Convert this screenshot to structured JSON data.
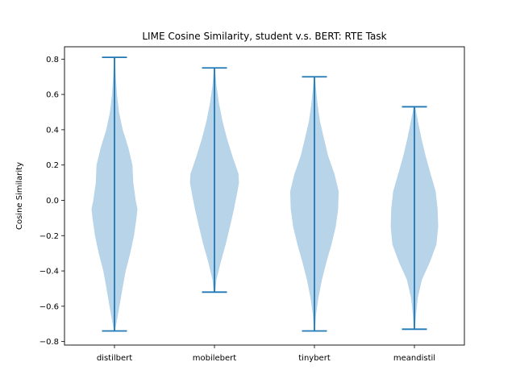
{
  "chart_data": {
    "type": "violin",
    "title": "LIME Cosine Similarity, student v.s. BERT: RTE Task",
    "xlabel": "",
    "ylabel": "Cosine Similarity",
    "ylim": [
      -0.82,
      0.87
    ],
    "yticks": [
      -0.8,
      -0.6,
      -0.4,
      -0.2,
      0.0,
      0.2,
      0.4,
      0.6,
      0.8
    ],
    "ytick_labels": [
      "−0.8",
      "−0.6",
      "−0.4",
      "−0.2",
      "0.0",
      "0.2",
      "0.4",
      "0.6",
      "0.8"
    ],
    "categories": [
      "distilbert",
      "mobilebert",
      "tinybert",
      "meandistil"
    ],
    "fill_color": "#b8d4e9",
    "line_color": "#1f77b4",
    "grid": false,
    "series": [
      {
        "name": "distilbert",
        "min": -0.74,
        "max": 0.81,
        "density": [
          [
            -0.74,
            0.02
          ],
          [
            -0.7,
            0.07
          ],
          [
            -0.6,
            0.2
          ],
          [
            -0.5,
            0.32
          ],
          [
            -0.4,
            0.45
          ],
          [
            -0.3,
            0.63
          ],
          [
            -0.2,
            0.78
          ],
          [
            -0.1,
            0.88
          ],
          [
            -0.05,
            0.92
          ],
          [
            0.0,
            0.85
          ],
          [
            0.1,
            0.75
          ],
          [
            0.2,
            0.72
          ],
          [
            0.3,
            0.55
          ],
          [
            0.4,
            0.33
          ],
          [
            0.5,
            0.18
          ],
          [
            0.6,
            0.1
          ],
          [
            0.7,
            0.05
          ],
          [
            0.81,
            0.02
          ]
        ]
      },
      {
        "name": "mobilebert",
        "min": -0.52,
        "max": 0.75,
        "density": [
          [
            -0.52,
            0.03
          ],
          [
            -0.45,
            0.08
          ],
          [
            -0.35,
            0.25
          ],
          [
            -0.25,
            0.45
          ],
          [
            -0.15,
            0.62
          ],
          [
            -0.05,
            0.78
          ],
          [
            0.05,
            0.92
          ],
          [
            0.1,
            0.98
          ],
          [
            0.15,
            0.96
          ],
          [
            0.25,
            0.72
          ],
          [
            0.35,
            0.5
          ],
          [
            0.45,
            0.32
          ],
          [
            0.55,
            0.18
          ],
          [
            0.65,
            0.08
          ],
          [
            0.75,
            0.02
          ]
        ]
      },
      {
        "name": "tinybert",
        "min": -0.74,
        "max": 0.7,
        "density": [
          [
            -0.74,
            0.02
          ],
          [
            -0.65,
            0.06
          ],
          [
            -0.55,
            0.16
          ],
          [
            -0.45,
            0.3
          ],
          [
            -0.35,
            0.48
          ],
          [
            -0.25,
            0.68
          ],
          [
            -0.15,
            0.85
          ],
          [
            -0.05,
            0.95
          ],
          [
            0.05,
            0.97
          ],
          [
            0.15,
            0.8
          ],
          [
            0.25,
            0.55
          ],
          [
            0.35,
            0.38
          ],
          [
            0.45,
            0.22
          ],
          [
            0.55,
            0.12
          ],
          [
            0.65,
            0.05
          ],
          [
            0.7,
            0.02
          ]
        ]
      },
      {
        "name": "meandistil",
        "min": -0.73,
        "max": 0.53,
        "density": [
          [
            -0.73,
            0.02
          ],
          [
            -0.65,
            0.06
          ],
          [
            -0.55,
            0.14
          ],
          [
            -0.45,
            0.3
          ],
          [
            -0.35,
            0.62
          ],
          [
            -0.25,
            0.88
          ],
          [
            -0.15,
            0.95
          ],
          [
            -0.05,
            0.93
          ],
          [
            0.05,
            0.85
          ],
          [
            0.15,
            0.65
          ],
          [
            0.25,
            0.45
          ],
          [
            0.35,
            0.28
          ],
          [
            0.45,
            0.14
          ],
          [
            0.53,
            0.03
          ]
        ]
      }
    ]
  }
}
